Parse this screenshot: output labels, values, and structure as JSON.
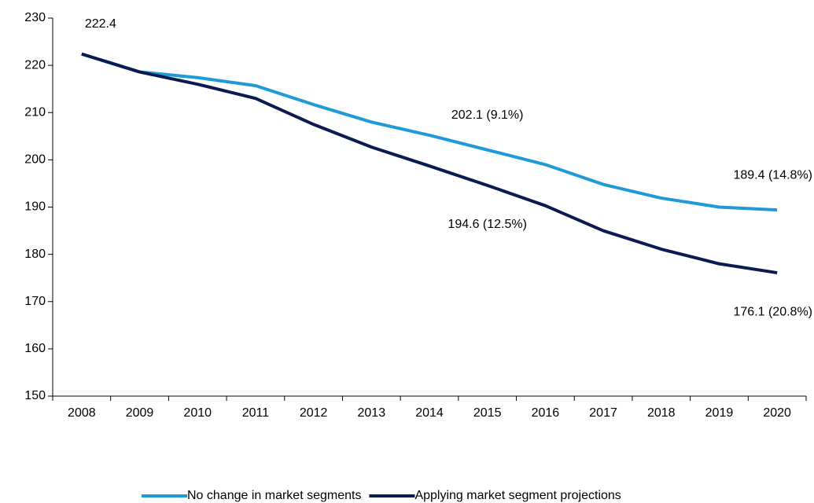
{
  "chart_data": {
    "type": "line",
    "categories": [
      "2008",
      "2009",
      "2010",
      "2011",
      "2012",
      "2013",
      "2014",
      "2015",
      "2016",
      "2017",
      "2018",
      "2019",
      "2020"
    ],
    "series": [
      {
        "name": "No change in market segments",
        "color": "#1f9ad6",
        "values": [
          222.4,
          218.6,
          217.4,
          215.7,
          211.7,
          208.0,
          205.2,
          202.1,
          199.0,
          194.8,
          191.9,
          190.0,
          189.4
        ],
        "value_labels": [
          "222.4",
          null,
          null,
          null,
          null,
          null,
          null,
          "202.1 (9.1%)",
          null,
          null,
          null,
          null,
          "189.4 (14.8%)"
        ]
      },
      {
        "name": "Applying market segment projections",
        "color": "#0b1a50",
        "values": [
          222.4,
          218.6,
          216.0,
          213.0,
          207.5,
          202.7,
          198.7,
          194.6,
          190.3,
          185.0,
          181.1,
          178.0,
          176.1
        ],
        "value_labels": [
          null,
          null,
          null,
          null,
          null,
          null,
          null,
          "194.6 (12.5%)",
          null,
          null,
          null,
          null,
          "176.1 (20.8%)"
        ]
      }
    ],
    "ylim": [
      150,
      230
    ],
    "yticks": [
      150,
      160,
      170,
      180,
      190,
      200,
      210,
      220,
      230
    ],
    "grid": false,
    "legend": "bottom"
  }
}
